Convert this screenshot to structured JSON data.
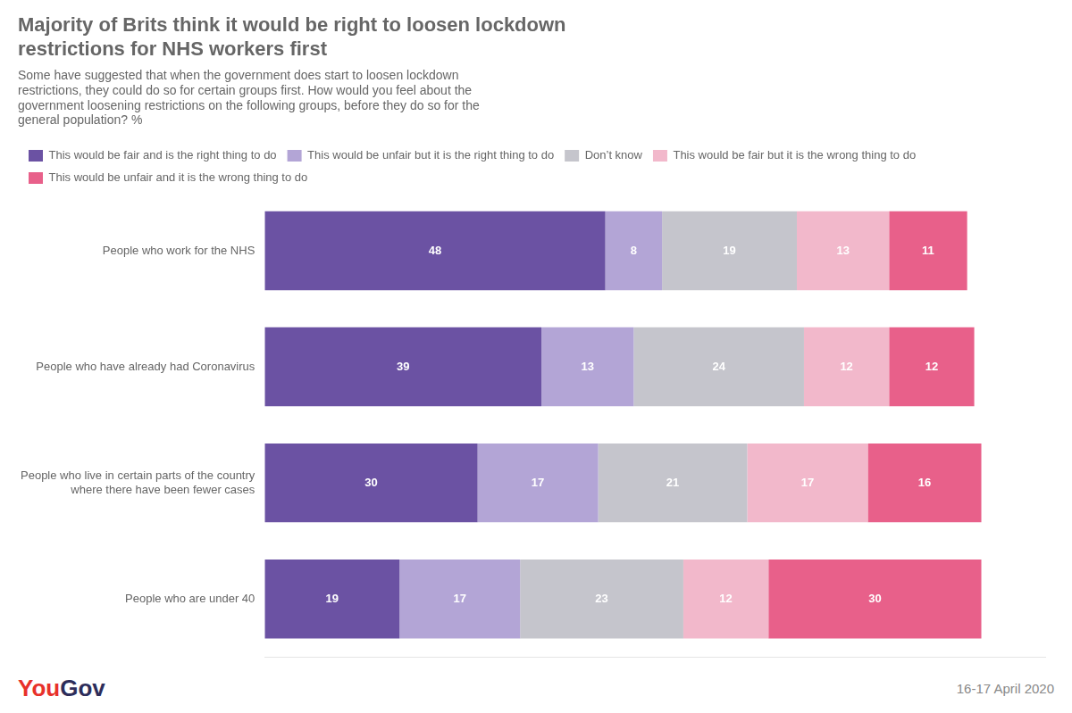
{
  "chart_data": {
    "type": "bar",
    "orientation": "horizontal",
    "stacked": true,
    "title": "Majority of Brits think it would be right to loosen lockdown\nrestrictions for NHS workers first",
    "subtitle": "Some have suggested that when the government does start to loosen lockdown\nrestrictions, they could do so for certain groups first. How would you feel about the\ngovernment loosening restrictions on the following groups, before they do so for the\ngeneral population? %",
    "categories": [
      "People who work for the NHS",
      "People who have already had Coronavirus",
      "People who live in certain parts of the country\nwhere there have been fewer cases",
      "People who are under 40"
    ],
    "series": [
      {
        "name": "This would be fair and is the right thing to do",
        "color": "#6b52a3",
        "values": [
          48,
          39,
          30,
          19
        ]
      },
      {
        "name": "This would be unfair but it is the right thing to do",
        "color": "#b3a5d6",
        "values": [
          8,
          13,
          17,
          17
        ]
      },
      {
        "name": "Don’t know",
        "color": "#c5c5cc",
        "values": [
          19,
          24,
          21,
          23
        ]
      },
      {
        "name": "This would be fair but it is the wrong thing to do",
        "color": "#f2b8cb",
        "values": [
          13,
          12,
          17,
          12
        ]
      },
      {
        "name": "This would be unfair and it is the wrong thing to do",
        "color": "#e8608a",
        "values": [
          11,
          12,
          16,
          30
        ]
      }
    ],
    "xlim": [
      0,
      110
    ],
    "grid": false,
    "legend": "top",
    "data_labels": true,
    "tick_labels": "y",
    "annotations": [
      {
        "text": "You",
        "color": "#e8312a"
      },
      {
        "text": "Gov",
        "color": "#2d2d5a"
      },
      {
        "text": "16-17 April 2020"
      }
    ]
  }
}
